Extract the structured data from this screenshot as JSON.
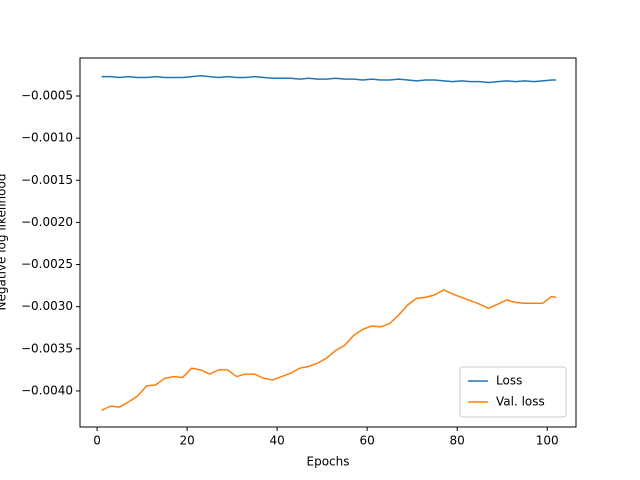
{
  "chart_data": {
    "type": "line",
    "xlabel": "Epochs",
    "ylabel": "Negative log likelihood",
    "x": [
      1,
      3,
      5,
      7,
      9,
      11,
      13,
      15,
      17,
      19,
      21,
      23,
      25,
      27,
      29,
      31,
      33,
      35,
      37,
      39,
      41,
      43,
      45,
      47,
      49,
      51,
      53,
      55,
      57,
      59,
      61,
      63,
      65,
      67,
      69,
      71,
      73,
      75,
      77,
      79,
      81,
      83,
      85,
      87,
      89,
      91,
      93,
      95,
      97,
      99,
      101,
      102
    ],
    "series": [
      {
        "name": "Loss",
        "color": "#1f77b4",
        "values": [
          -0.00027,
          -0.00027,
          -0.00028,
          -0.00027,
          -0.00028,
          -0.00028,
          -0.00027,
          -0.00028,
          -0.00028,
          -0.00028,
          -0.00027,
          -0.00026,
          -0.00027,
          -0.00028,
          -0.00027,
          -0.00028,
          -0.00028,
          -0.00027,
          -0.00028,
          -0.00029,
          -0.00029,
          -0.00029,
          -0.0003,
          -0.00029,
          -0.0003,
          -0.0003,
          -0.00029,
          -0.0003,
          -0.0003,
          -0.00031,
          -0.0003,
          -0.00031,
          -0.00031,
          -0.0003,
          -0.00031,
          -0.00032,
          -0.00031,
          -0.00031,
          -0.00032,
          -0.00033,
          -0.00032,
          -0.00033,
          -0.00033,
          -0.00034,
          -0.00033,
          -0.00032,
          -0.00033,
          -0.00032,
          -0.00033,
          -0.00032,
          -0.00031,
          -0.00031
        ]
      },
      {
        "name": "Val. loss",
        "color": "#ff7f0e",
        "values": [
          -0.00423,
          -0.00418,
          -0.00419,
          -0.00413,
          -0.00406,
          -0.00394,
          -0.00393,
          -0.00385,
          -0.00383,
          -0.00384,
          -0.00373,
          -0.00375,
          -0.0038,
          -0.00375,
          -0.00375,
          -0.00383,
          -0.0038,
          -0.0038,
          -0.00385,
          -0.00387,
          -0.00383,
          -0.00379,
          -0.00373,
          -0.00371,
          -0.00367,
          -0.00361,
          -0.00352,
          -0.00346,
          -0.00334,
          -0.00327,
          -0.00323,
          -0.00324,
          -0.0032,
          -0.0031,
          -0.00298,
          -0.0029,
          -0.00289,
          -0.00286,
          -0.0028,
          -0.00285,
          -0.00289,
          -0.00293,
          -0.00297,
          -0.00302,
          -0.00297,
          -0.00292,
          -0.00295,
          -0.00296,
          -0.00296,
          -0.00296,
          -0.00288,
          -0.00289
        ]
      }
    ],
    "xlim": [
      -3.8,
      106.4
    ],
    "ylim": [
      -0.004428,
      -4.9e-05
    ],
    "xticks": [
      0,
      20,
      40,
      60,
      80,
      100
    ],
    "yticks": [
      {
        "value": -0.0005,
        "label": "−0.0005"
      },
      {
        "value": -0.001,
        "label": "−0.0010"
      },
      {
        "value": -0.0015,
        "label": "−0.0015"
      },
      {
        "value": -0.002,
        "label": "−0.0020"
      },
      {
        "value": -0.0025,
        "label": "−0.0025"
      },
      {
        "value": -0.003,
        "label": "−0.0030"
      },
      {
        "value": -0.0035,
        "label": "−0.0035"
      },
      {
        "value": -0.004,
        "label": "−0.0040"
      }
    ],
    "legend": "lower right",
    "grid": false
  }
}
